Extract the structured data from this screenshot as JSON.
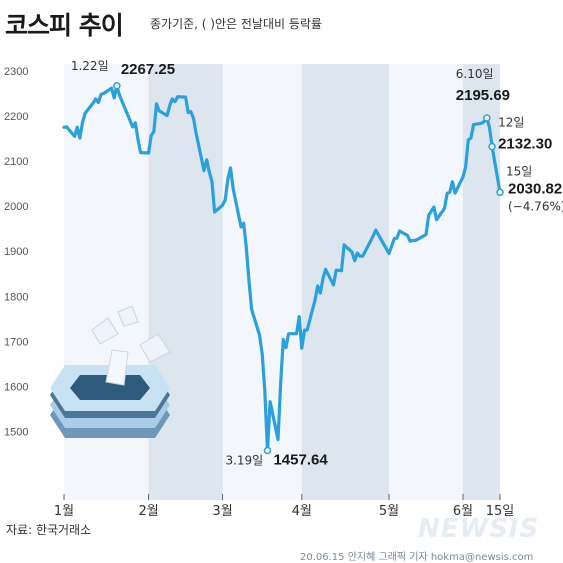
{
  "title": "코스피 추이",
  "subtitle": "종가기준, ( )안은 전날대비 등락률",
  "source": "자료: 한국거래소",
  "credit": "20.06.15 안지혜 그래픽 기자 hokma@newsis.com",
  "watermark": "NEWSIS",
  "colors": {
    "line": "#2aa0dc",
    "band": "#dde5ef",
    "negative": "#d0021b"
  },
  "chart_data": {
    "type": "line",
    "title": "코스피 추이",
    "subtitle": "종가기준, ( )안은 전날대비 등락률",
    "ylim": [
      1410,
      2320
    ],
    "yticks": [
      1500,
      1600,
      1700,
      1800,
      1900,
      2000,
      2100,
      2200,
      2300
    ],
    "xlim": [
      "2020-01-02",
      "2020-06-15"
    ],
    "xticks": [
      {
        "label": "1월",
        "date": "2020-01-02"
      },
      {
        "label": "2월",
        "date": "2020-02-03"
      },
      {
        "label": "3월",
        "date": "2020-03-02"
      },
      {
        "label": "4월",
        "date": "2020-04-01"
      },
      {
        "label": "5월",
        "date": "2020-05-04"
      },
      {
        "label": "6월",
        "date": "2020-06-01"
      },
      {
        "label": "15일",
        "date": "2020-06-15"
      }
    ],
    "series": [
      {
        "x": [
          "2020-01-02",
          "2020-01-03",
          "2020-01-06",
          "2020-01-07",
          "2020-01-08",
          "2020-01-09",
          "2020-01-10",
          "2020-01-13",
          "2020-01-14",
          "2020-01-15",
          "2020-01-16",
          "2020-01-17",
          "2020-01-20",
          "2020-01-21",
          "2020-01-22",
          "2020-01-23",
          "2020-01-28",
          "2020-01-29",
          "2020-01-30",
          "2020-01-31",
          "2020-02-03",
          "2020-02-04",
          "2020-02-05",
          "2020-02-06",
          "2020-02-07",
          "2020-02-10",
          "2020-02-11",
          "2020-02-12",
          "2020-02-13",
          "2020-02-14",
          "2020-02-17",
          "2020-02-18",
          "2020-02-19",
          "2020-02-20",
          "2020-02-21",
          "2020-02-24",
          "2020-02-25",
          "2020-02-26",
          "2020-02-27",
          "2020-02-28",
          "2020-03-02",
          "2020-03-03",
          "2020-03-04",
          "2020-03-05",
          "2020-03-06",
          "2020-03-09",
          "2020-03-10",
          "2020-03-11",
          "2020-03-12",
          "2020-03-13",
          "2020-03-16",
          "2020-03-17",
          "2020-03-18",
          "2020-03-19",
          "2020-03-20",
          "2020-03-23",
          "2020-03-24",
          "2020-03-25",
          "2020-03-26",
          "2020-03-27",
          "2020-03-30",
          "2020-03-31",
          "2020-04-01",
          "2020-04-02",
          "2020-04-03",
          "2020-04-06",
          "2020-04-07",
          "2020-04-08",
          "2020-04-09",
          "2020-04-10",
          "2020-04-13",
          "2020-04-14",
          "2020-04-16",
          "2020-04-17",
          "2020-04-20",
          "2020-04-21",
          "2020-04-22",
          "2020-04-23",
          "2020-04-24",
          "2020-04-27",
          "2020-04-28",
          "2020-04-29",
          "2020-05-04",
          "2020-05-06",
          "2020-05-07",
          "2020-05-08",
          "2020-05-11",
          "2020-05-12",
          "2020-05-13",
          "2020-05-14",
          "2020-05-15",
          "2020-05-18",
          "2020-05-19",
          "2020-05-20",
          "2020-05-21",
          "2020-05-22",
          "2020-05-25",
          "2020-05-26",
          "2020-05-27",
          "2020-05-28",
          "2020-05-29",
          "2020-06-01",
          "2020-06-02",
          "2020-06-03",
          "2020-06-04",
          "2020-06-05",
          "2020-06-08",
          "2020-06-09",
          "2020-06-10",
          "2020-06-11",
          "2020-06-12",
          "2020-06-15"
        ],
        "y": [
          2175,
          2176,
          2155,
          2175,
          2151,
          2186,
          2206,
          2229,
          2238,
          2230,
          2248,
          2250,
          2262,
          2240,
          2267.25,
          2246,
          2176,
          2185,
          2148,
          2119,
          2118,
          2157,
          2165,
          2227,
          2212,
          2201,
          2223,
          2238,
          2232,
          2243,
          2242,
          2208,
          2210,
          2195,
          2162,
          2079,
          2103,
          2076,
          2054,
          1987,
          2002,
          2014,
          2059,
          2085,
          2040,
          1954,
          1962,
          1908,
          1834,
          1771,
          1714,
          1672,
          1591,
          1457.64,
          1566,
          1482,
          1609,
          1704,
          1686,
          1717,
          1717,
          1755,
          1685,
          1725,
          1725,
          1791,
          1823,
          1807,
          1840,
          1860,
          1825,
          1858,
          1857,
          1914,
          1898,
          1879,
          1896,
          1889,
          1889,
          1922,
          1934,
          1947,
          1895,
          1928,
          1929,
          1945,
          1935,
          1922,
          1924,
          1924,
          1927,
          1937,
          1980,
          1989,
          1998,
          1970,
          1995,
          2029,
          2031,
          2054,
          2029,
          2065,
          2087,
          2147,
          2151,
          2181,
          2184,
          2188,
          2195.69,
          2176,
          2132.3,
          2030.82
        ]
      }
    ],
    "annotations": [
      {
        "date_label": "1.22일",
        "value": "2267.25"
      },
      {
        "date_label": "3.19일",
        "value": "1457.64"
      },
      {
        "date_label": "6.10일",
        "value": "2195.69"
      },
      {
        "date_label": "12일",
        "value": "2132.30"
      },
      {
        "date_label": "15일",
        "value": "2030.82",
        "change": "(−4.76%)"
      }
    ],
    "grid": "alternating month bands"
  }
}
